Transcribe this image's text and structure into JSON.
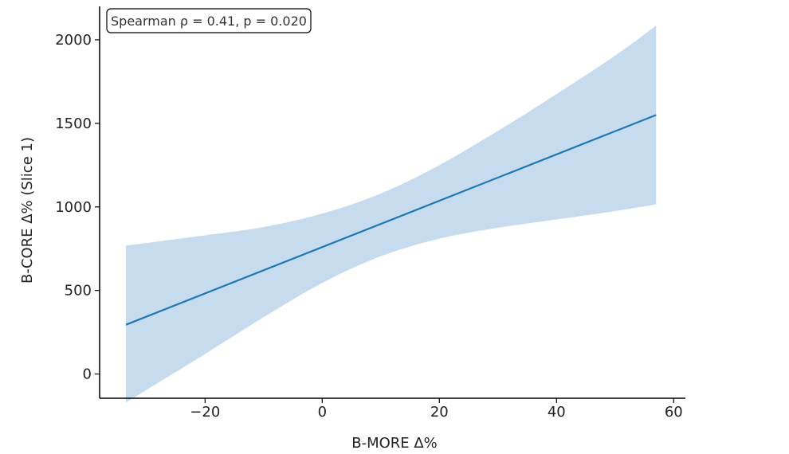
{
  "chart_data": {
    "type": "line",
    "title": "",
    "xlabel": "B-MORE Δ%",
    "ylabel": "B-CORE Δ% (Slice 1)",
    "annotation": "Spearman ρ = 0.41, p = 0.020",
    "xlim": [
      -38,
      62
    ],
    "ylim": [
      -145,
      2200
    ],
    "x_ticks": [
      -20,
      0,
      20,
      40,
      60
    ],
    "x_tick_labels": [
      "−20",
      "0",
      "20",
      "40",
      "60"
    ],
    "y_ticks": [
      0,
      500,
      1000,
      1500,
      2000
    ],
    "y_tick_labels": [
      "0",
      "500",
      "1000",
      "1500",
      "2000"
    ],
    "grid": false,
    "colors": {
      "line": "#1f77b4",
      "band": "#c6dbed"
    },
    "series": [
      {
        "x": [
          -33.5,
          57
        ],
        "y": [
          295,
          1550
        ]
      }
    ],
    "confidence_band": {
      "x": [
        -33.5,
        -20,
        -10,
        0,
        10,
        20,
        30,
        40,
        50,
        57
      ],
      "lower": [
        -170,
        120,
        340,
        545,
        705,
        810,
        875,
        925,
        975,
        1015
      ],
      "upper": [
        768,
        830,
        880,
        960,
        1080,
        1250,
        1455,
        1675,
        1905,
        2085
      ]
    }
  }
}
